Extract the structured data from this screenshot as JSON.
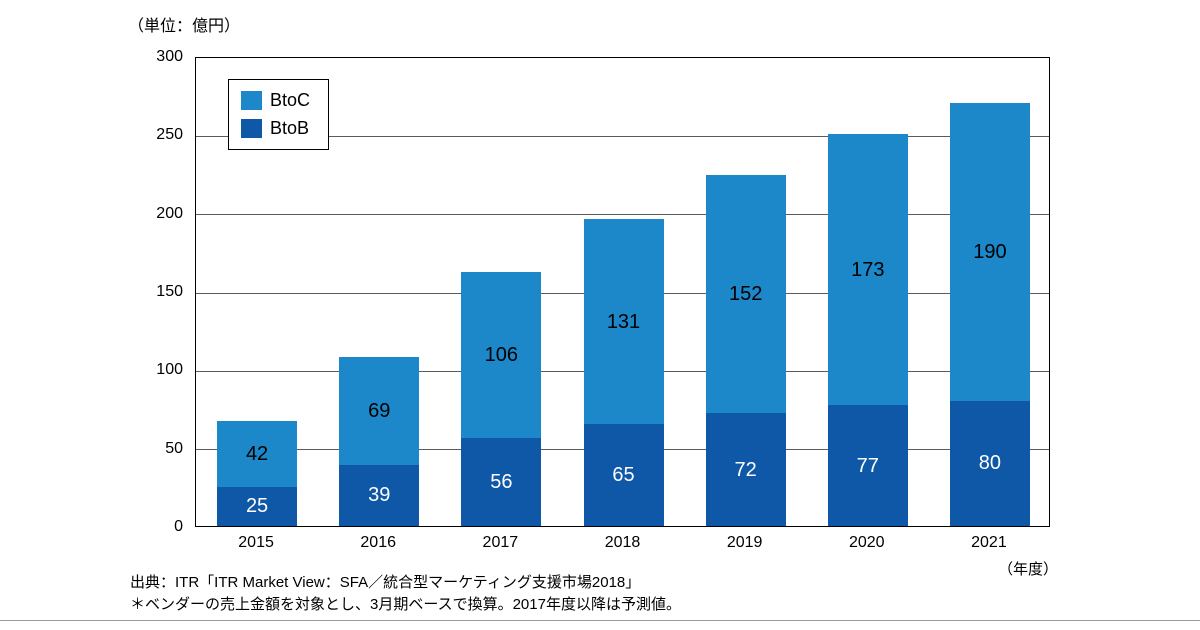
{
  "chart_data": {
    "type": "bar",
    "stacked": true,
    "title": "",
    "unit_label": "（単位：億円）",
    "x_axis_label": "（年度）",
    "categories": [
      "2015",
      "2016",
      "2017",
      "2018",
      "2019",
      "2020",
      "2021"
    ],
    "series": [
      {
        "name": "BtoB",
        "color": "#0f57a7",
        "label_color": "#ffffff",
        "values": [
          25,
          39,
          56,
          65,
          72,
          77,
          80
        ]
      },
      {
        "name": "BtoC",
        "color": "#1c87c9",
        "label_color": "#000000",
        "values": [
          42,
          69,
          106,
          131,
          152,
          173,
          190
        ]
      }
    ],
    "totals": [
      67,
      108,
      162,
      196,
      224,
      250,
      270
    ],
    "ylim": [
      0,
      300
    ],
    "ytick_step": 50,
    "yticks": [
      0,
      50,
      100,
      150,
      200,
      250,
      300
    ],
    "grid": true,
    "legend": {
      "position": "top-left",
      "entries": [
        "BtoC",
        "BtoB"
      ]
    }
  },
  "footer": {
    "source": "出典：ITR「ITR Market View：SFA／統合型マーケティング支援市場2018」",
    "note": "＊ベンダーの売上金額を対象とし、3月期ベースで換算。2017年度以降は予測値。"
  }
}
